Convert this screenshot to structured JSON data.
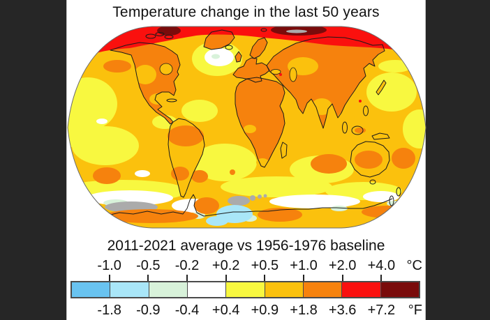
{
  "window": {
    "background": "#262626",
    "panel_background": "#ffffff"
  },
  "title": "Temperature change in the last 50 years",
  "subtitle": "2011-2021 average vs 1956-1976 baseline",
  "legend": {
    "celsius_labels": [
      "-1.0",
      "-0.5",
      "-0.2",
      "+0.2",
      "+0.5",
      "+1.0",
      "+2.0",
      "+4.0"
    ],
    "celsius_unit": "°C",
    "fahrenheit_labels": [
      "-1.8",
      "-0.9",
      "-0.4",
      "+0.4",
      "+0.9",
      "+1.8",
      "+3.6",
      "+7.2"
    ],
    "fahrenheit_unit": "°F",
    "segment_colors": [
      "#69C3F0",
      "#A9E6F8",
      "#D8F2DA",
      "#FFFFFF",
      "#F8F840",
      "#FBC10D",
      "#F6820D",
      "#FA100E",
      "#7A0B0B"
    ]
  },
  "map": {
    "type": "world-temperature-anomaly",
    "projection": "Robinson",
    "no_data_color": "#ABABAB",
    "coastline_color": "#1a1a1a"
  },
  "chart_data": {
    "type": "heatmap",
    "title": "Temperature change in the last 50 years",
    "subtitle": "2011-2021 average vs 1956-1976 baseline",
    "legend_position": "bottom",
    "scale": {
      "boundaries_celsius": [
        -1.0,
        -0.5,
        -0.2,
        0.2,
        0.5,
        1.0,
        2.0,
        4.0
      ],
      "boundaries_fahrenheit": [
        -1.8,
        -0.9,
        -0.4,
        0.4,
        0.9,
        1.8,
        3.6,
        7.2
      ],
      "bin_colors": [
        "#69C3F0",
        "#A9E6F8",
        "#D8F2DA",
        "#FFFFFF",
        "#F8F840",
        "#FBC10D",
        "#F6820D",
        "#FA100E",
        "#7A0B0B"
      ],
      "units": [
        "°C",
        "°F"
      ],
      "no_data_color": "#ABABAB"
    }
  }
}
